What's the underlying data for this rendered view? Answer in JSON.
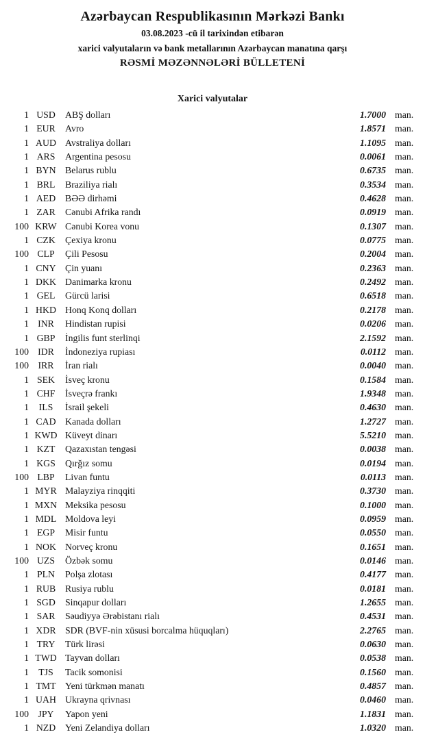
{
  "header": {
    "bank_name": "Azərbaycan Respublikasının Mərkəzi Bankı",
    "date_line": "03.08.2023 -cü il tarixindən etibarən",
    "subtitle": "xarici valyutaların və bank metallarının Azərbaycan manatına qarşı",
    "bulletin_title": "RƏSMİ MƏZƏNNƏLƏRİ BÜLLETENİ"
  },
  "section": {
    "title": "Xarici valyutalar"
  },
  "unit_label": "man.",
  "rates": [
    {
      "qty": "1",
      "code": "USD",
      "name": "ABŞ dolları",
      "rate": "1.7000"
    },
    {
      "qty": "1",
      "code": "EUR",
      "name": "Avro",
      "rate": "1.8571"
    },
    {
      "qty": "1",
      "code": "AUD",
      "name": "Avstraliya dolları",
      "rate": "1.1095"
    },
    {
      "qty": "1",
      "code": "ARS",
      "name": "Argentina pesosu",
      "rate": "0.0061"
    },
    {
      "qty": "1",
      "code": "BYN",
      "name": "Belarus rublu",
      "rate": "0.6735"
    },
    {
      "qty": "1",
      "code": "BRL",
      "name": "Braziliya rialı",
      "rate": "0.3534"
    },
    {
      "qty": "1",
      "code": "AED",
      "name": "BƏƏ dirhəmi",
      "rate": "0.4628"
    },
    {
      "qty": "1",
      "code": "ZAR",
      "name": "Cənubi Afrika randı",
      "rate": "0.0919"
    },
    {
      "qty": "100",
      "code": "KRW",
      "name": "Cənubi Korea vonu",
      "rate": "0.1307"
    },
    {
      "qty": "1",
      "code": "CZK",
      "name": "Çexiya kronu",
      "rate": "0.0775"
    },
    {
      "qty": "100",
      "code": "CLP",
      "name": "Çili Pesosu",
      "rate": "0.2004"
    },
    {
      "qty": "1",
      "code": "CNY",
      "name": "Çin yuanı",
      "rate": "0.2363"
    },
    {
      "qty": "1",
      "code": "DKK",
      "name": "Danimarka kronu",
      "rate": "0.2492"
    },
    {
      "qty": "1",
      "code": "GEL",
      "name": "Gürcü larisi",
      "rate": "0.6518"
    },
    {
      "qty": "1",
      "code": "HKD",
      "name": "Honq Konq dolları",
      "rate": "0.2178"
    },
    {
      "qty": "1",
      "code": "INR",
      "name": "Hindistan rupisi",
      "rate": "0.0206"
    },
    {
      "qty": "1",
      "code": "GBP",
      "name": "İngilis funt sterlinqi",
      "rate": "2.1592"
    },
    {
      "qty": "100",
      "code": "IDR",
      "name": "İndoneziya rupiası",
      "rate": "0.0112"
    },
    {
      "qty": "100",
      "code": "IRR",
      "name": "İran rialı",
      "rate": "0.0040"
    },
    {
      "qty": "1",
      "code": "SEK",
      "name": "İsveç kronu",
      "rate": "0.1584"
    },
    {
      "qty": "1",
      "code": "CHF",
      "name": "İsveçrə frankı",
      "rate": "1.9348"
    },
    {
      "qty": "1",
      "code": "ILS",
      "name": "İsrail şekeli",
      "rate": "0.4630"
    },
    {
      "qty": "1",
      "code": "CAD",
      "name": "Kanada dolları",
      "rate": "1.2727"
    },
    {
      "qty": "1",
      "code": "KWD",
      "name": "Küveyt dinarı",
      "rate": "5.5210"
    },
    {
      "qty": "1",
      "code": "KZT",
      "name": "Qazaxıstan tengəsi",
      "rate": "0.0038"
    },
    {
      "qty": "1",
      "code": "KGS",
      "name": "Qırğız somu",
      "rate": "0.0194"
    },
    {
      "qty": "100",
      "code": "LBP",
      "name": "Livan funtu",
      "rate": "0.0113"
    },
    {
      "qty": "1",
      "code": "MYR",
      "name": "Malayziya rinqqiti",
      "rate": "0.3730"
    },
    {
      "qty": "1",
      "code": "MXN",
      "name": "Meksika pesosu",
      "rate": "0.1000"
    },
    {
      "qty": "1",
      "code": "MDL",
      "name": "Moldova leyi",
      "rate": "0.0959"
    },
    {
      "qty": "1",
      "code": "EGP",
      "name": "Misir funtu",
      "rate": "0.0550"
    },
    {
      "qty": "1",
      "code": "NOK",
      "name": "Norveç kronu",
      "rate": "0.1651"
    },
    {
      "qty": "100",
      "code": "UZS",
      "name": "Özbək somu",
      "rate": "0.0146"
    },
    {
      "qty": "1",
      "code": "PLN",
      "name": "Polşa zlotası",
      "rate": "0.4177"
    },
    {
      "qty": "1",
      "code": "RUB",
      "name": "Rusiya rublu",
      "rate": "0.0181"
    },
    {
      "qty": "1",
      "code": "SGD",
      "name": "Sinqapur dolları",
      "rate": "1.2655"
    },
    {
      "qty": "1",
      "code": "SAR",
      "name": "Səudiyyə Ərəbistanı rialı",
      "rate": "0.4531"
    },
    {
      "qty": "1",
      "code": "XDR",
      "name": "SDR (BVF-nin xüsusi borcalma hüquqları)",
      "rate": "2.2765"
    },
    {
      "qty": "1",
      "code": "TRY",
      "name": "Türk lirəsi",
      "rate": "0.0630"
    },
    {
      "qty": "1",
      "code": "TWD",
      "name": "Tayvan dolları",
      "rate": "0.0538"
    },
    {
      "qty": "1",
      "code": "TJS",
      "name": "Tacik somonisi",
      "rate": "0.1560"
    },
    {
      "qty": "1",
      "code": "TMT",
      "name": "Yeni türkmən manatı",
      "rate": "0.4857"
    },
    {
      "qty": "1",
      "code": "UAH",
      "name": "Ukrayna qrivnası",
      "rate": "0.0460"
    },
    {
      "qty": "100",
      "code": "JPY",
      "name": "Yapon yeni",
      "rate": "1.1831"
    },
    {
      "qty": "1",
      "code": "NZD",
      "name": "Yeni Zelandiya dolları",
      "rate": "1.0320"
    }
  ]
}
